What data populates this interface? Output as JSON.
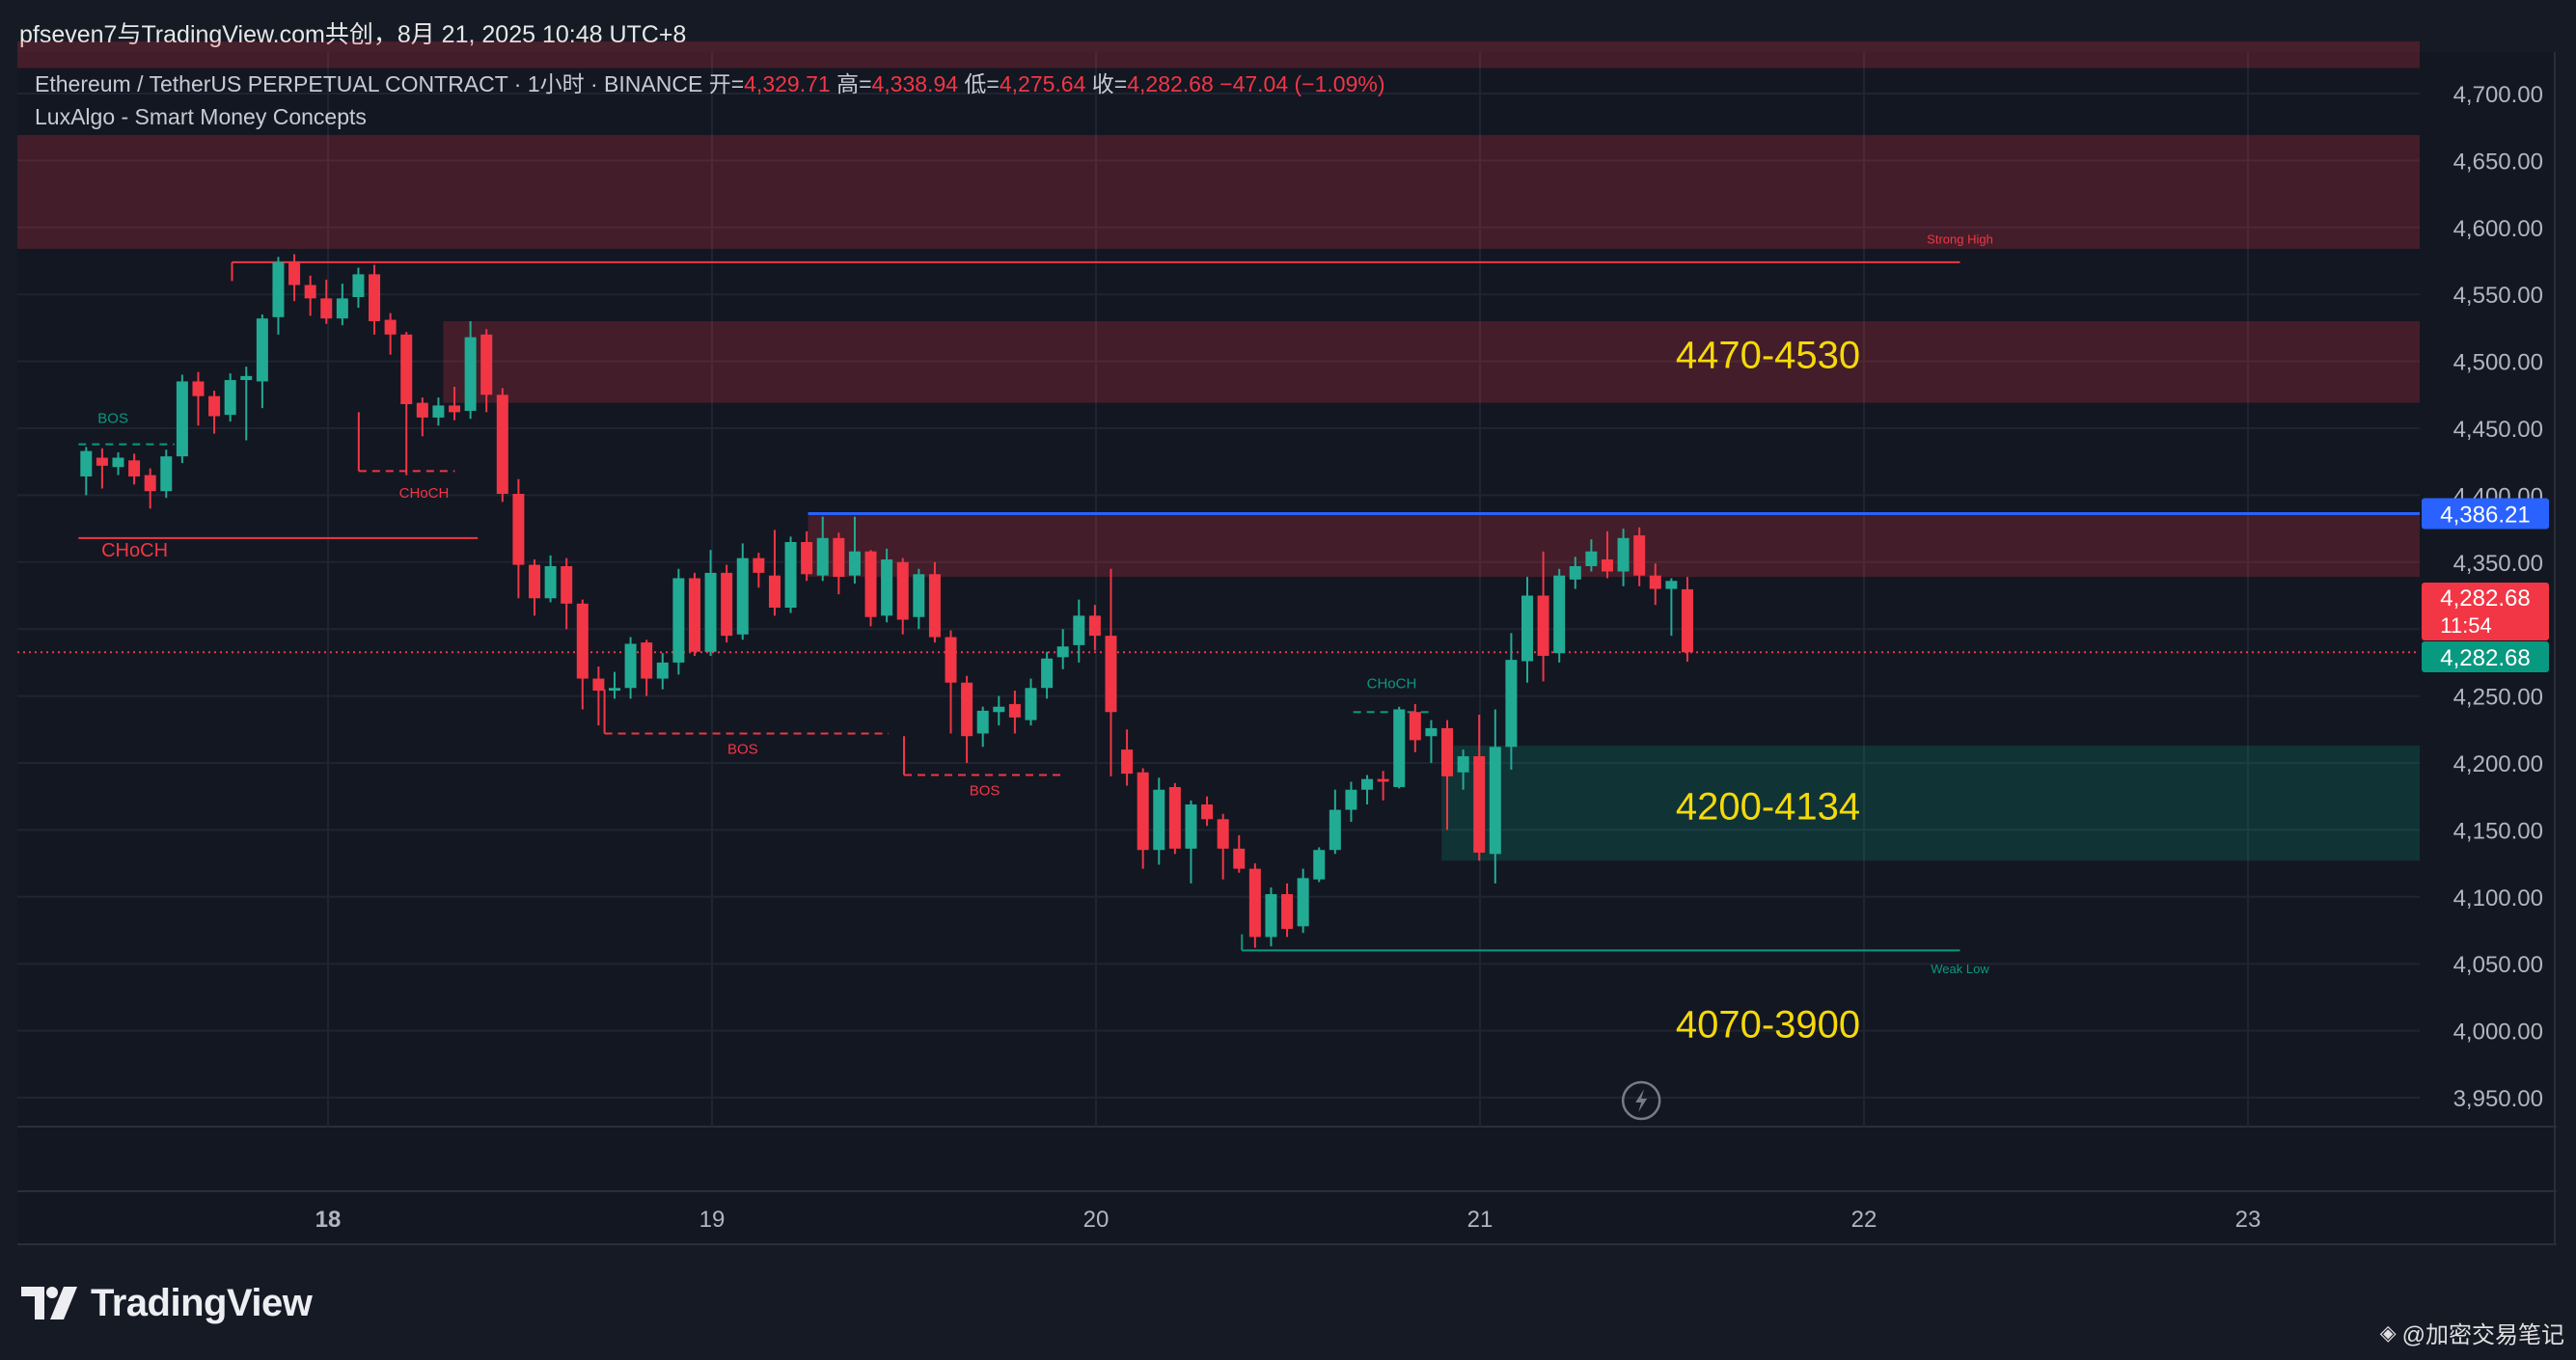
{
  "attribution": "pfseven7与TradingView.com共创，8月 21, 2025 10:48 UTC+8",
  "legend": {
    "symbol": "Ethereum / TetherUS PERPETUAL CONTRACT · 1小时 · BINANCE",
    "open_label": "开=",
    "open": "4,329.71",
    "high_label": "高=",
    "high": "4,338.94",
    "low_label": "低=",
    "low": "4,275.64",
    "close_label": "收=",
    "close": "4,282.68",
    "change": "−47.04 (−1.09%)",
    "indicator": "LuxAlgo - Smart Money Concepts"
  },
  "footer": {
    "logo_text": "TradingView",
    "watermark": "@加密交易笔记"
  },
  "colors": {
    "up": "#22ab94",
    "down": "#f23645",
    "background": "#161a25",
    "highlight_text": "#f5d90a",
    "blue_line": "#2962ff"
  },
  "chart_data": {
    "type": "candlestick",
    "symbol": "ETHUSDT.P",
    "timeframe": "1h",
    "x_ticks": [
      "18",
      "19",
      "20",
      "21",
      "22",
      "23"
    ],
    "y_ticks": [
      "4,700.00",
      "4,650.00",
      "4,600.00",
      "4,550.00",
      "4,500.00",
      "4,450.00",
      "4,400.00",
      "4,350.00",
      "4,300.00",
      "4,250.00",
      "4,200.00",
      "4,150.00",
      "4,100.00",
      "4,050.00",
      "4,000.00",
      "3,950.00"
    ],
    "y_tick_values": [
      4700,
      4650,
      4600,
      4550,
      4500,
      4450,
      4400,
      4350,
      4300,
      4250,
      4200,
      4150,
      4100,
      4050,
      4000,
      3950
    ],
    "ylim": [
      3928,
      4740
    ],
    "x_day_index": {
      "first_candle_day": 17.35,
      "candle_spacing_days": 0.0417
    },
    "price_labels": [
      {
        "text": "4,386.21",
        "value": 4386.21,
        "color": "#2962ff"
      },
      {
        "text": "4,282.68",
        "countdown": "11:54",
        "value": 4282.68,
        "color": "#f23645"
      },
      {
        "text": "4,282.68",
        "value": 4282.68,
        "color": "#089981"
      }
    ],
    "candles": [
      [
        4414,
        4433,
        4400,
        4436
      ],
      [
        4428,
        4422,
        4405,
        4435
      ],
      [
        4421,
        4428,
        4415,
        4432
      ],
      [
        4426,
        4414,
        4408,
        4431
      ],
      [
        4415,
        4403,
        4390,
        4420
      ],
      [
        4403,
        4429,
        4398,
        4434
      ],
      [
        4429,
        4485,
        4424,
        4490
      ],
      [
        4485,
        4474,
        4452,
        4492
      ],
      [
        4474,
        4459,
        4446,
        4478
      ],
      [
        4460,
        4486,
        4455,
        4491
      ],
      [
        4486,
        4489,
        4441,
        4496
      ],
      [
        4485,
        4532,
        4465,
        4535
      ],
      [
        4533,
        4574,
        4520,
        4578
      ],
      [
        4574,
        4557,
        4545,
        4580
      ],
      [
        4557,
        4547,
        4534,
        4564
      ],
      [
        4547,
        4532,
        4528,
        4561
      ],
      [
        4532,
        4547,
        4527,
        4558
      ],
      [
        4548,
        4565,
        4540,
        4570
      ],
      [
        4565,
        4530,
        4520,
        4572
      ],
      [
        4531,
        4520,
        4505,
        4536
      ],
      [
        4520,
        4468,
        4415,
        4522
      ],
      [
        4469,
        4458,
        4444,
        4473
      ],
      [
        4458,
        4467,
        4452,
        4473
      ],
      [
        4467,
        4462,
        4456,
        4481
      ],
      [
        4463,
        4518,
        4457,
        4530
      ],
      [
        4520,
        4475,
        4462,
        4524
      ],
      [
        4475,
        4401,
        4395,
        4480
      ],
      [
        4401,
        4348,
        4323,
        4412
      ],
      [
        4348,
        4323,
        4310,
        4352
      ],
      [
        4323,
        4347,
        4320,
        4355
      ],
      [
        4347,
        4319,
        4300,
        4353
      ],
      [
        4319,
        4263,
        4240,
        4322
      ],
      [
        4263,
        4254,
        4228,
        4272
      ],
      [
        4254,
        4256,
        4248,
        4268
      ],
      [
        4256,
        4289,
        4248,
        4294
      ],
      [
        4290,
        4263,
        4250,
        4292
      ],
      [
        4263,
        4275,
        4255,
        4282
      ],
      [
        4275,
        4338,
        4266,
        4345
      ],
      [
        4338,
        4283,
        4280,
        4342
      ],
      [
        4283,
        4342,
        4280,
        4359
      ],
      [
        4342,
        4295,
        4290,
        4348
      ],
      [
        4296,
        4353,
        4292,
        4364
      ],
      [
        4353,
        4342,
        4331,
        4357
      ],
      [
        4340,
        4316,
        4310,
        4374
      ],
      [
        4316,
        4365,
        4312,
        4369
      ],
      [
        4365,
        4341,
        4336,
        4373
      ],
      [
        4340,
        4368,
        4336,
        4384
      ],
      [
        4368,
        4339,
        4326,
        4372
      ],
      [
        4340,
        4358,
        4334,
        4384
      ],
      [
        4358,
        4309,
        4302,
        4359
      ],
      [
        4310,
        4352,
        4305,
        4360
      ],
      [
        4350,
        4307,
        4296,
        4353
      ],
      [
        4309,
        4341,
        4300,
        4345
      ],
      [
        4341,
        4294,
        4290,
        4350
      ],
      [
        4294,
        4260,
        4222,
        4299
      ],
      [
        4260,
        4220,
        4200,
        4265
      ],
      [
        4222,
        4239,
        4212,
        4242
      ],
      [
        4238,
        4242,
        4228,
        4250
      ],
      [
        4244,
        4234,
        4222,
        4254
      ],
      [
        4232,
        4256,
        4228,
        4263
      ],
      [
        4256,
        4278,
        4248,
        4283
      ],
      [
        4279,
        4287,
        4270,
        4300
      ],
      [
        4288,
        4310,
        4275,
        4322
      ],
      [
        4310,
        4295,
        4284,
        4318
      ],
      [
        4295,
        4238,
        4190,
        4345
      ],
      [
        4210,
        4192,
        4183,
        4225
      ],
      [
        4193,
        4135,
        4121,
        4196
      ],
      [
        4135,
        4180,
        4124,
        4189
      ],
      [
        4182,
        4136,
        4132,
        4185
      ],
      [
        4136,
        4169,
        4110,
        4172
      ],
      [
        4169,
        4158,
        4153,
        4175
      ],
      [
        4158,
        4136,
        4113,
        4162
      ],
      [
        4136,
        4121,
        4118,
        4146
      ],
      [
        4121,
        4070,
        4062,
        4125
      ],
      [
        4070,
        4102,
        4063,
        4107
      ],
      [
        4102,
        4076,
        4070,
        4110
      ],
      [
        4078,
        4114,
        4073,
        4121
      ],
      [
        4113,
        4135,
        4111,
        4137
      ],
      [
        4135,
        4165,
        4132,
        4180
      ],
      [
        4165,
        4180,
        4156,
        4186
      ],
      [
        4180,
        4188,
        4169,
        4191
      ],
      [
        4188,
        4186,
        4172,
        4194
      ],
      [
        4182,
        4240,
        4181,
        4242
      ],
      [
        4238,
        4217,
        4208,
        4244
      ],
      [
        4220,
        4226,
        4200,
        4232
      ],
      [
        4226,
        4190,
        4150,
        4232
      ],
      [
        4193,
        4205,
        4180,
        4210
      ],
      [
        4205,
        4133,
        4127,
        4236
      ],
      [
        4132,
        4212,
        4110,
        4240
      ],
      [
        4212,
        4277,
        4195,
        4297
      ],
      [
        4276,
        4325,
        4260,
        4339
      ],
      [
        4325,
        4280,
        4261,
        4358
      ],
      [
        4282,
        4340,
        4275,
        4345
      ],
      [
        4337,
        4347,
        4330,
        4354
      ],
      [
        4347,
        4358,
        4343,
        4367
      ],
      [
        4352,
        4343,
        4338,
        4373
      ],
      [
        4343,
        4368,
        4332,
        4375
      ],
      [
        4370,
        4340,
        4332,
        4376
      ],
      [
        4340,
        4330,
        4318,
        4349
      ],
      [
        4330,
        4336,
        4295,
        4338
      ],
      [
        4329.71,
        4282.68,
        4275.64,
        4338.94
      ]
    ],
    "zones": [
      {
        "name": "supply-top",
        "from": 4719,
        "to": 4739,
        "color": "#f23645",
        "style": "red"
      },
      {
        "name": "strong-high-zone",
        "from": 4584,
        "to": 4669,
        "color": "#f23645",
        "style": "red"
      },
      {
        "name": "supply-4470-4530",
        "from": 4469,
        "to": 4530,
        "start_day": 18.3,
        "color": "#f23645",
        "style": "red"
      },
      {
        "name": "supply-4340-4386",
        "from": 4339,
        "to": 4386,
        "start_day": 19.25,
        "color": "#f23645",
        "style": "red"
      },
      {
        "name": "demand-4200-4134",
        "from": 4127,
        "to": 4213,
        "start_day": 20.9,
        "color": "#089981",
        "style": "green"
      }
    ],
    "annotations": [
      {
        "text": "4470-4530",
        "price": 4505,
        "day": 21.75,
        "size": 40
      },
      {
        "text": "4200-4134",
        "price": 4168,
        "day": 21.75,
        "size": 40
      },
      {
        "text": "4070-3900",
        "price": 4005,
        "day": 21.75,
        "size": 40
      }
    ],
    "structure_labels": [
      {
        "text": "BOS",
        "day": 17.44,
        "price": 4454,
        "color": "#089981",
        "line_from": 17.35,
        "line_to": 17.6,
        "line_price": 4438,
        "dashed": true
      },
      {
        "text": "CHoCH",
        "day": 18.25,
        "price": 4398,
        "color": "#f23645",
        "line_from": 18.08,
        "line_to": 18.33,
        "line_price": 4418,
        "dashed": true
      },
      {
        "text": "CHoCH",
        "day": 17.44,
        "price": 4354,
        "color": "#f23645",
        "line_from": 17.35,
        "line_to": 18.39,
        "line_price": 4368,
        "dashed": false,
        "big": true
      },
      {
        "text": "BOS",
        "day": 19.08,
        "price": 4207,
        "color": "#f23645",
        "line_from": 18.72,
        "line_to": 19.46,
        "line_price": 4222,
        "dashed": true
      },
      {
        "text": "BOS",
        "day": 19.71,
        "price": 4176,
        "color": "#f23645",
        "line_from": 19.5,
        "line_to": 19.92,
        "line_price": 4191,
        "dashed": true
      },
      {
        "text": "CHoCH",
        "day": 20.77,
        "price": 4256,
        "color": "#089981",
        "line_from": 20.67,
        "line_to": 20.88,
        "line_price": 4238,
        "dashed": true
      },
      {
        "text": "Strong High",
        "day": 22.25,
        "price": 4588,
        "color": "#f23645",
        "line_from": 17.75,
        "line_to": 22.25,
        "line_price": 4574,
        "dashed": false,
        "small": true
      },
      {
        "text": "Weak Low",
        "day": 22.25,
        "price": 4043,
        "color": "#089981",
        "line_from": 20.38,
        "line_to": 22.25,
        "line_price": 4060,
        "dashed": false,
        "small": true
      }
    ],
    "horizontal_lines": [
      {
        "name": "last-price",
        "price": 4282.68,
        "color": "#f23645",
        "dotted": true
      },
      {
        "name": "blue-level",
        "price": 4386.21,
        "color": "#2962ff",
        "from_day": 19.25
      }
    ],
    "grid": true
  }
}
